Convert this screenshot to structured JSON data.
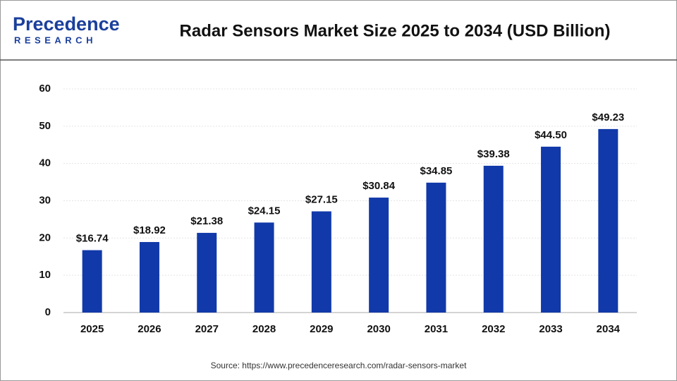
{
  "logo": {
    "name": "Precedence",
    "tagline": "RESEARCH"
  },
  "chart_data": {
    "type": "bar",
    "title": "Radar Sensors Market Size 2025 to 2034 (USD Billion)",
    "categories": [
      "2025",
      "2026",
      "2027",
      "2028",
      "2029",
      "2030",
      "2031",
      "2032",
      "2033",
      "2034"
    ],
    "values": [
      16.74,
      18.92,
      21.38,
      24.15,
      27.15,
      30.84,
      34.85,
      39.38,
      44.5,
      49.23
    ],
    "value_labels": [
      "$16.74",
      "$18.92",
      "$21.38",
      "$24.15",
      "$27.15",
      "$30.84",
      "$34.85",
      "$39.38",
      "$44.50",
      "$49.23"
    ],
    "color": "#1139a9",
    "ylim": [
      0,
      60
    ],
    "yticks": [
      0,
      10,
      20,
      30,
      40,
      50,
      60
    ],
    "grid": true,
    "source": "Source: https://www.precedenceresearch.com/radar-sensors-market"
  }
}
